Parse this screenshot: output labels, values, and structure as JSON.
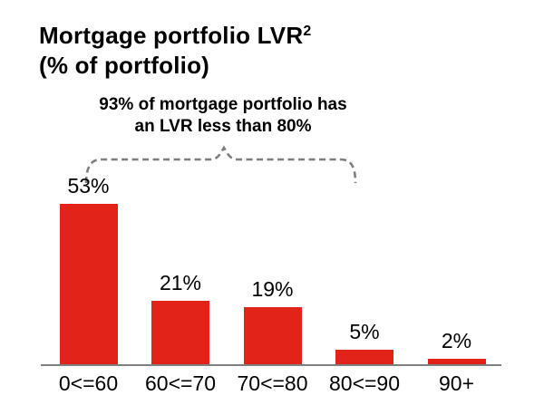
{
  "title": {
    "text": "Mortgage portfolio LVR",
    "superscript": "2",
    "subtitle": "(% of portfolio)"
  },
  "annotation": {
    "line1": "93% of mortgage portfolio has",
    "line2": "an LVR less than 80%"
  },
  "chart_data": {
    "type": "bar",
    "title": "Mortgage portfolio LVR2 (% of portfolio)",
    "categories": [
      "0<=60",
      "60<=70",
      "70<=80",
      "80<=90",
      "90+"
    ],
    "values": [
      53,
      21,
      19,
      5,
      2
    ],
    "value_labels": [
      "53%",
      "21%",
      "19%",
      "5%",
      "2%"
    ],
    "unit": "%",
    "xlabel": "",
    "ylabel": "",
    "ylim": [
      0,
      60
    ],
    "grid": false,
    "legend": "none",
    "annotation_text": "93% of mortgage portfolio has an LVR less than 80%",
    "annotation_covers_categories": [
      "0<=60",
      "60<=70",
      "70<=80"
    ]
  },
  "colors": {
    "bar": "#E2231A",
    "axis_line": "#808080",
    "brace": "#7F7F7F",
    "text": "#000000",
    "background": "#FFFFFF"
  }
}
